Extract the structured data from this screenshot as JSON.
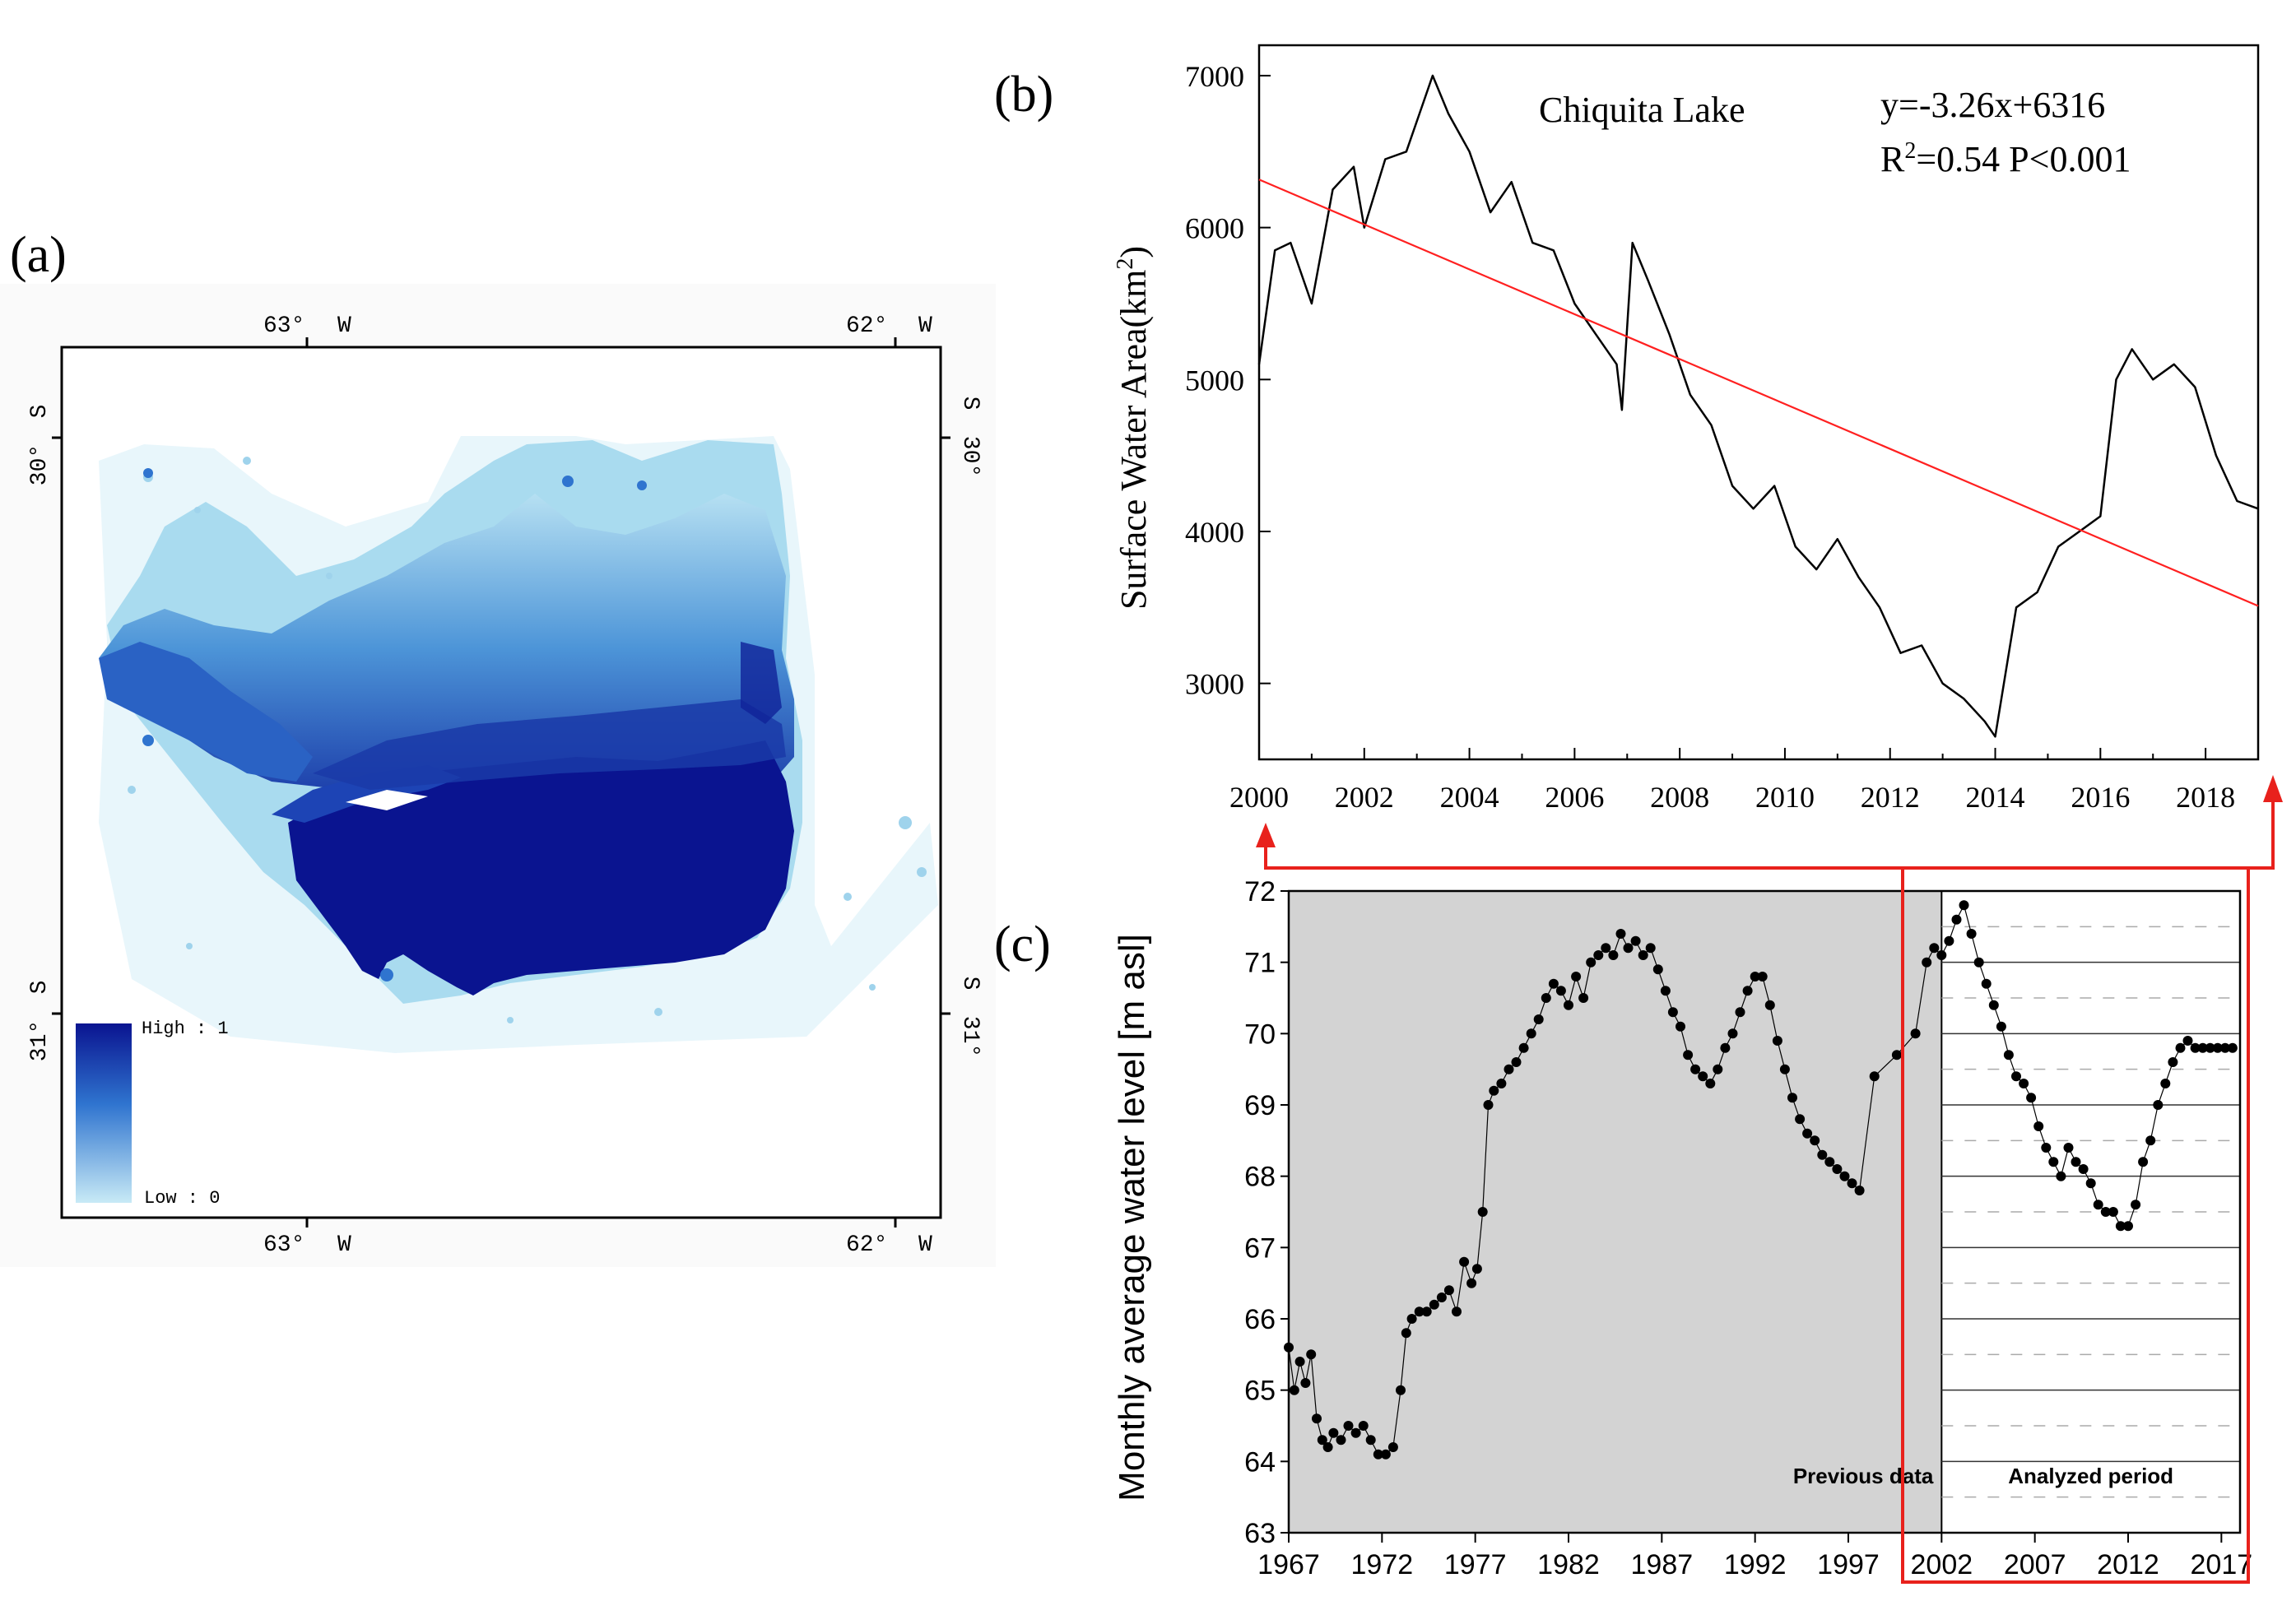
{
  "panels": {
    "a": {
      "label": "(a)"
    },
    "b": {
      "label": "(b)"
    },
    "c": {
      "label": "(c)"
    }
  },
  "map": {
    "lon_labels_top": [
      "63°",
      "62°"
    ],
    "lon_labels_bottom": [
      "63°",
      "62°"
    ],
    "lon_hemisphere": "W",
    "lat_labels": [
      "30°",
      "31°"
    ],
    "lat_hemisphere": "S",
    "legend": {
      "high": "High : 1",
      "low": "Low : 0"
    },
    "colors": {
      "deep": "#0a1490",
      "mid": "#2f74cf",
      "light": "#9fd3ec",
      "pale": "#d4eef7"
    }
  },
  "chart_data": [
    {
      "id": "b",
      "type": "line",
      "title": "Chiquita Lake",
      "equation": "y=-3.26x+6316",
      "r2_text": "R",
      "r2_sup": "2",
      "stats_text": "=0.54 P<0.001",
      "ylabel": "Surface Water Area(km",
      "ylabel_sup": "2",
      "ylabel_end": ")",
      "xlabel": "",
      "xlim": [
        2000,
        2019
      ],
      "ylim": [
        2500,
        7200
      ],
      "xticks": [
        "2000",
        "2002",
        "2004",
        "2006",
        "2008",
        "2010",
        "2012",
        "2014",
        "2016",
        "2018"
      ],
      "yticks": [
        "3000",
        "4000",
        "5000",
        "6000",
        "7000"
      ],
      "series": [
        {
          "name": "Surface water area",
          "color": "#000000",
          "x": [
            2000.0,
            2000.3,
            2000.6,
            2001.0,
            2001.4,
            2001.8,
            2002.0,
            2002.4,
            2002.8,
            2003.1,
            2003.3,
            2003.6,
            2004.0,
            2004.4,
            2004.8,
            2005.2,
            2005.6,
            2006.0,
            2006.4,
            2006.8,
            2006.9,
            2007.1,
            2007.4,
            2007.8,
            2008.2,
            2008.6,
            2009.0,
            2009.4,
            2009.8,
            2010.2,
            2010.6,
            2011.0,
            2011.4,
            2011.8,
            2012.2,
            2012.6,
            2013.0,
            2013.4,
            2013.8,
            2014.0,
            2014.4,
            2014.8,
            2015.2,
            2015.6,
            2016.0,
            2016.3,
            2016.6,
            2017.0,
            2017.4,
            2017.8,
            2018.2,
            2018.6,
            2019.0
          ],
          "y": [
            5100,
            5850,
            5900,
            5500,
            6250,
            6400,
            6000,
            6450,
            6500,
            6800,
            7000,
            6750,
            6500,
            6100,
            6300,
            5900,
            5850,
            5500,
            5300,
            5100,
            4800,
            5900,
            5650,
            5300,
            4900,
            4700,
            4300,
            4150,
            4300,
            3900,
            3750,
            3950,
            3700,
            3500,
            3200,
            3250,
            3000,
            2900,
            2750,
            2650,
            3500,
            3600,
            3900,
            4000,
            4100,
            5000,
            5200,
            5000,
            5100,
            4950,
            4500,
            4200,
            4150
          ]
        },
        {
          "name": "Linear fit",
          "color": "#ff2020",
          "x": [
            2000,
            2019
          ],
          "y": [
            6316,
            3510
          ]
        }
      ]
    },
    {
      "id": "c",
      "type": "scatter",
      "title": "",
      "ylabel": "Monthly average water level [m asl]",
      "xlabel": "",
      "xlim": [
        1967,
        2018
      ],
      "ylim": [
        63,
        72
      ],
      "xticks": [
        "1967",
        "1972",
        "1977",
        "1982",
        "1987",
        "1992",
        "1997",
        "2002",
        "2007",
        "2012",
        "2017"
      ],
      "yticks": [
        "63",
        "64",
        "65",
        "66",
        "67",
        "68",
        "69",
        "70",
        "71",
        "72"
      ],
      "regions": [
        {
          "label": "Previous data",
          "from": 1967,
          "to": 2002,
          "color": "#d3d3d3"
        },
        {
          "label": "Analyzed period",
          "from": 2002,
          "to": 2018,
          "color": "#ffffff"
        }
      ],
      "series": [
        {
          "name": "Water level",
          "color": "#000000",
          "x": [
            1967.0,
            1967.3,
            1967.6,
            1967.9,
            1968.2,
            1968.5,
            1968.8,
            1969.1,
            1969.4,
            1969.8,
            1970.2,
            1970.6,
            1971.0,
            1971.4,
            1971.8,
            1972.2,
            1972.6,
            1973.0,
            1973.3,
            1973.6,
            1974.0,
            1974.4,
            1974.8,
            1975.2,
            1975.6,
            1976.0,
            1976.4,
            1976.8,
            1977.1,
            1977.4,
            1977.7,
            1978.0,
            1978.4,
            1978.8,
            1979.2,
            1979.6,
            1980.0,
            1980.4,
            1980.8,
            1981.2,
            1981.6,
            1982.0,
            1982.4,
            1982.8,
            1983.2,
            1983.6,
            1984.0,
            1984.4,
            1984.8,
            1985.2,
            1985.6,
            1986.0,
            1986.4,
            1986.8,
            1987.2,
            1987.6,
            1988.0,
            1988.4,
            1988.8,
            1989.2,
            1989.6,
            1990.0,
            1990.4,
            1990.8,
            1991.2,
            1991.6,
            1992.0,
            1992.4,
            1992.8,
            1993.2,
            1993.6,
            1994.0,
            1994.4,
            1994.8,
            1995.2,
            1995.6,
            1996.0,
            1996.4,
            1996.8,
            1997.2,
            1997.6,
            1998.4,
            1999.6,
            2000.6,
            2001.2,
            2001.6,
            2002.0,
            2002.4,
            2002.8,
            2003.2,
            2003.6,
            2004.0,
            2004.4,
            2004.8,
            2005.2,
            2005.6,
            2006.0,
            2006.4,
            2006.8,
            2007.2,
            2007.6,
            2008.0,
            2008.4,
            2008.8,
            2009.2,
            2009.6,
            2010.0,
            2010.4,
            2010.8,
            2011.2,
            2011.6,
            2012.0,
            2012.4,
            2012.8,
            2013.2,
            2013.6,
            2014.0,
            2014.4,
            2014.8,
            2015.2,
            2015.6,
            2016.0,
            2016.4,
            2016.8,
            2017.2,
            2017.6
          ],
          "y": [
            65.6,
            65.0,
            65.4,
            65.1,
            65.5,
            64.6,
            64.3,
            64.2,
            64.4,
            64.3,
            64.5,
            64.4,
            64.5,
            64.3,
            64.1,
            64.1,
            64.2,
            65.0,
            65.8,
            66.0,
            66.1,
            66.1,
            66.2,
            66.3,
            66.4,
            66.1,
            66.8,
            66.5,
            66.7,
            67.5,
            69.0,
            69.2,
            69.3,
            69.5,
            69.6,
            69.8,
            70.0,
            70.2,
            70.5,
            70.7,
            70.6,
            70.4,
            70.8,
            70.5,
            71.0,
            71.1,
            71.2,
            71.1,
            71.4,
            71.2,
            71.3,
            71.1,
            71.2,
            70.9,
            70.6,
            70.3,
            70.1,
            69.7,
            69.5,
            69.4,
            69.3,
            69.5,
            69.8,
            70.0,
            70.3,
            70.6,
            70.8,
            70.8,
            70.4,
            69.9,
            69.5,
            69.1,
            68.8,
            68.6,
            68.5,
            68.3,
            68.2,
            68.1,
            68.0,
            67.9,
            67.8,
            69.4,
            69.7,
            70.0,
            71.0,
            71.2,
            71.1,
            71.3,
            71.6,
            71.8,
            71.4,
            71.0,
            70.7,
            70.4,
            70.1,
            69.7,
            69.4,
            69.3,
            69.1,
            68.7,
            68.4,
            68.2,
            68.0,
            68.4,
            68.2,
            68.1,
            67.9,
            67.6,
            67.5,
            67.5,
            67.3,
            67.3,
            67.6,
            68.2,
            68.5,
            69.0,
            69.3,
            69.6,
            69.8,
            69.9,
            69.8,
            69.8,
            69.8,
            69.8,
            69.8,
            69.8
          ]
        }
      ]
    }
  ]
}
